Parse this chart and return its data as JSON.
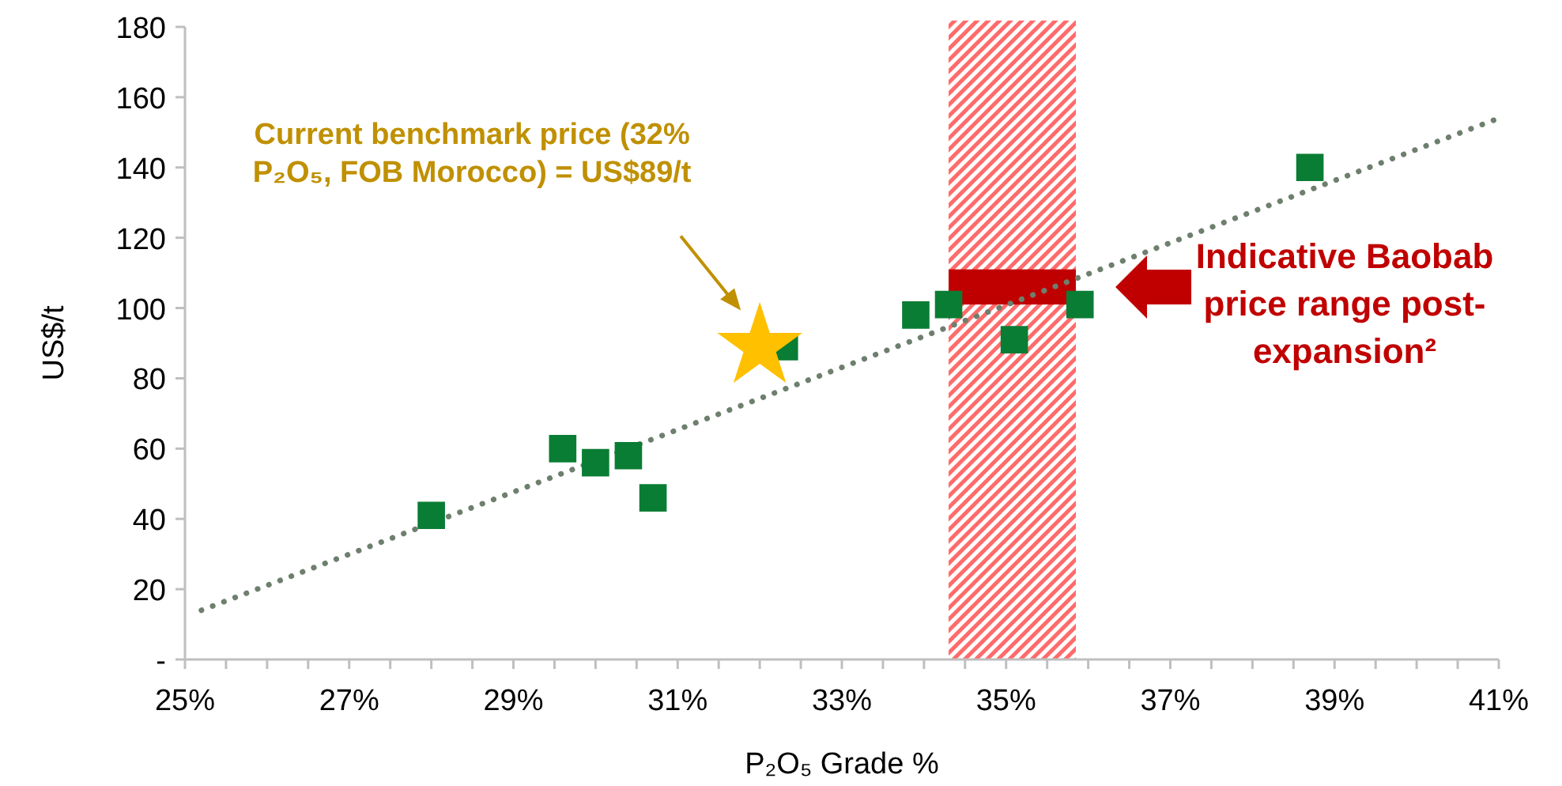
{
  "chart_data": {
    "type": "scatter",
    "xlabel": "P₂O₅ Grade %",
    "ylabel": "US$/t",
    "xlim": [
      25,
      41
    ],
    "ylim": [
      0,
      180
    ],
    "xticks": [
      {
        "value": 25,
        "label": "25%"
      },
      {
        "value": 25.5,
        "label": null
      },
      {
        "value": 26,
        "label": null
      },
      {
        "value": 26.5,
        "label": null
      },
      {
        "value": 27,
        "label": "27%"
      },
      {
        "value": 27.5,
        "label": null
      },
      {
        "value": 28,
        "label": null
      },
      {
        "value": 28.5,
        "label": null
      },
      {
        "value": 29,
        "label": "29%"
      },
      {
        "value": 29.5,
        "label": null
      },
      {
        "value": 30,
        "label": null
      },
      {
        "value": 30.5,
        "label": null
      },
      {
        "value": 31,
        "label": "31%"
      },
      {
        "value": 31.5,
        "label": null
      },
      {
        "value": 32,
        "label": null
      },
      {
        "value": 32.5,
        "label": null
      },
      {
        "value": 33,
        "label": "33%"
      },
      {
        "value": 33.5,
        "label": null
      },
      {
        "value": 34,
        "label": null
      },
      {
        "value": 34.5,
        "label": null
      },
      {
        "value": 35,
        "label": "35%"
      },
      {
        "value": 35.5,
        "label": null
      },
      {
        "value": 36,
        "label": null
      },
      {
        "value": 36.5,
        "label": null
      },
      {
        "value": 37,
        "label": "37%"
      },
      {
        "value": 37.5,
        "label": null
      },
      {
        "value": 38,
        "label": null
      },
      {
        "value": 38.5,
        "label": null
      },
      {
        "value": 39,
        "label": "39%"
      },
      {
        "value": 39.5,
        "label": null
      },
      {
        "value": 40,
        "label": null
      },
      {
        "value": 40.5,
        "label": null
      },
      {
        "value": 41,
        "label": "41%"
      }
    ],
    "yticks": [
      {
        "value": 0,
        "label": "-"
      },
      20,
      40,
      60,
      80,
      100,
      120,
      140,
      160,
      180
    ],
    "grid": false,
    "series": [
      {
        "marker": "square",
        "color": "#0a7d34",
        "x": [
          28.0,
          29.6,
          30.0,
          30.4,
          30.7,
          32.3,
          33.9,
          34.3,
          35.1,
          35.9,
          38.7
        ],
        "values": [
          41,
          60,
          56,
          58,
          46,
          89,
          98,
          101,
          91,
          101,
          140
        ]
      },
      {
        "type": "line",
        "line_style": "dotted",
        "color": "#6e7f6e",
        "x": [
          25.2,
          41.0
        ],
        "values": [
          14,
          154
        ]
      },
      {
        "marker": "star",
        "color": "#ffc000",
        "x": [
          32
        ],
        "values": [
          89
        ]
      }
    ],
    "bands": [
      {
        "axis": "x",
        "from": 34.3,
        "to": 35.85,
        "color": "#ff6b6b"
      },
      {
        "axis": "y",
        "from": 101,
        "to": 111,
        "color": "#c00000",
        "label": "Indicative Baobab price range post-expansion²"
      }
    ],
    "annotations": [
      "Current benchmark price (32% P₂O₅, FOB Morocco) = US$89/t"
    ]
  }
}
